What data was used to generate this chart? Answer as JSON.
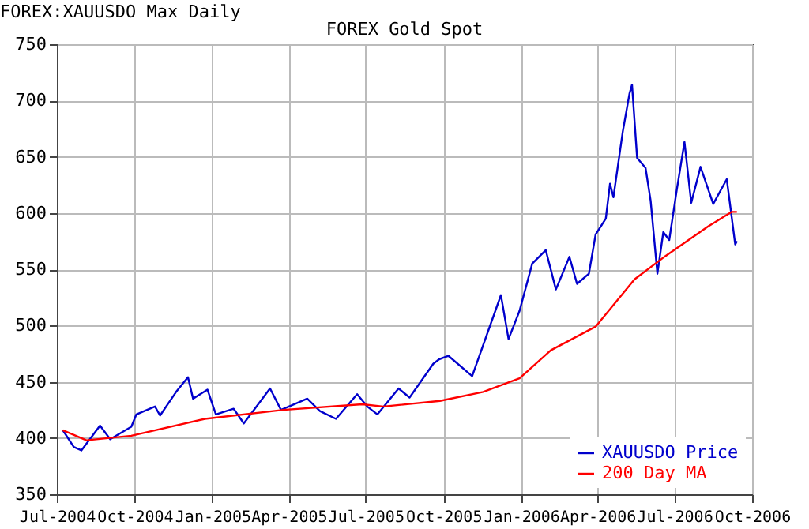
{
  "chart_data": {
    "type": "line",
    "title": "FOREX Gold Spot",
    "annotations": [
      "FOREX:XAUUSDO Max Daily"
    ],
    "xlim": [
      "2004-07-01",
      "2006-10-01"
    ],
    "xticks": [
      {
        "value": "2004-07-01",
        "label": "Jul-2004"
      },
      {
        "value": "2004-10-01",
        "label": "Oct-2004"
      },
      {
        "value": "2005-01-01",
        "label": "Jan-2005"
      },
      {
        "value": "2005-04-01",
        "label": "Apr-2005"
      },
      {
        "value": "2005-07-01",
        "label": "Jul-2005"
      },
      {
        "value": "2005-10-01",
        "label": "Oct-2005"
      },
      {
        "value": "2006-01-01",
        "label": "Jan-2006"
      },
      {
        "value": "2006-04-01",
        "label": "Apr-2006"
      },
      {
        "value": "2006-07-01",
        "label": "Jul-2006"
      },
      {
        "value": "2006-10-01",
        "label": "Oct-2006"
      }
    ],
    "ylim": [
      350,
      750
    ],
    "yticks": [
      350,
      400,
      450,
      500,
      550,
      600,
      650,
      700,
      750
    ],
    "grid": true,
    "legend": "bottom right",
    "marker": "none",
    "line_style": "solid",
    "series": [
      {
        "name": "XAUUSDO Price",
        "color": "#0000cc",
        "x": [
          "2004-07-08",
          "2004-07-21",
          "2004-07-30",
          "2004-08-21",
          "2004-09-02",
          "2004-09-27",
          "2004-10-03",
          "2004-10-25",
          "2004-10-31",
          "2004-11-19",
          "2004-12-03",
          "2004-12-09",
          "2004-12-26",
          "2005-01-05",
          "2005-01-26",
          "2005-02-07",
          "2005-03-10",
          "2005-03-23",
          "2005-04-23",
          "2005-05-08",
          "2005-05-27",
          "2005-06-21",
          "2005-07-03",
          "2005-07-15",
          "2005-08-09",
          "2005-08-22",
          "2005-09-19",
          "2005-09-26",
          "2005-10-07",
          "2005-11-04",
          "2005-12-08",
          "2005-12-17",
          "2005-12-30",
          "2006-01-14",
          "2006-01-30",
          "2006-02-11",
          "2006-02-27",
          "2006-03-08",
          "2006-03-22",
          "2006-03-30",
          "2006-04-11",
          "2006-04-16",
          "2006-04-20",
          "2006-05-01",
          "2006-05-09",
          "2006-05-12",
          "2006-05-18",
          "2006-05-28",
          "2006-06-03",
          "2006-06-11",
          "2006-06-18",
          "2006-06-25",
          "2006-07-04",
          "2006-07-13",
          "2006-07-21",
          "2006-08-01",
          "2006-08-16",
          "2006-09-01",
          "2006-09-05",
          "2006-09-11",
          "2006-09-13"
        ],
        "values": [
          407,
          392,
          389,
          411,
          399,
          410,
          421,
          428,
          420,
          441,
          454,
          435,
          443,
          421,
          426,
          413,
          444,
          425,
          435,
          424,
          417,
          439,
          428,
          421,
          444,
          436,
          466,
          470,
          473,
          455,
          527,
          488,
          513,
          555,
          567,
          532,
          561,
          537,
          546,
          581,
          595,
          626,
          614,
          672,
          706,
          714,
          649,
          640,
          611,
          546,
          583,
          576,
          621,
          663,
          609,
          641,
          608,
          630,
          607,
          572,
          575
        ]
      },
      {
        "name": "200 Day MA",
        "color": "#ff0000",
        "x": [
          "2004-07-08",
          "2004-08-05",
          "2004-09-27",
          "2004-12-23",
          "2005-03-26",
          "2005-06-27",
          "2005-07-22",
          "2005-09-27",
          "2005-11-17",
          "2005-12-30",
          "2006-02-05",
          "2006-03-30",
          "2006-05-15",
          "2006-06-21",
          "2006-08-10",
          "2006-09-07",
          "2006-09-13"
        ],
        "values": [
          407,
          398,
          402,
          417,
          425,
          430,
          428,
          433,
          441,
          453,
          478,
          499,
          541,
          562,
          588,
          601,
          601
        ]
      }
    ]
  }
}
